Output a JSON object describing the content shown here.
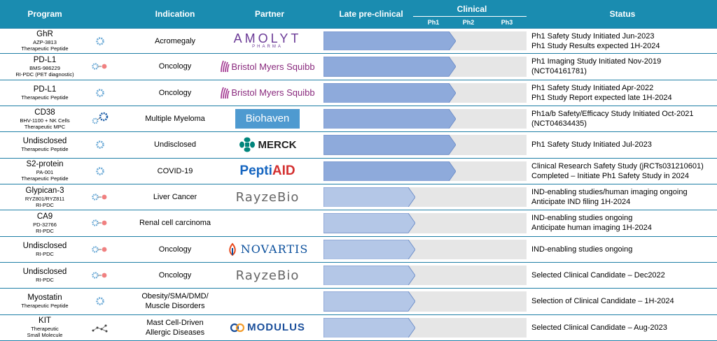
{
  "header": {
    "program": "Program",
    "indication": "Indication",
    "partner": "Partner",
    "late_preclinical": "Late pre-clinical",
    "clinical": "Clinical",
    "phases": [
      "Ph1",
      "Ph2",
      "Ph3"
    ],
    "status": "Status"
  },
  "colors": {
    "header_bg": "#1a8cb0",
    "clinical_bar": "#8eaadb",
    "preclinical_bar": "#b4c7e7",
    "track_bg": "#e6e6e6",
    "row_border": "#1f7fa6"
  },
  "rows": [
    {
      "program": "GhR",
      "sub": "AZP-3813\nTherapeutic Peptide",
      "icon": "peptide-icon",
      "indication": "Acromegaly",
      "partner": "AMOLYT PHARMA",
      "stage": "Ph1",
      "progress": 0.65,
      "status": [
        "Ph1 Safety Study Initiated Jun-2023",
        "Ph1 Study Results expected 1H-2024"
      ]
    },
    {
      "program": "PD-L1",
      "sub": "BMS-986229\nRI-PDC (PET diagnostic)",
      "icon": "radioligand-icon",
      "indication": "Oncology",
      "partner": "Bristol Myers Squibb",
      "stage": "Ph1",
      "progress": 0.65,
      "status": [
        "Ph1 Imaging Study Initiated Nov-2019",
        "(NCT04161781)"
      ]
    },
    {
      "program": "PD-L1",
      "sub": "Therapeutic Peptide",
      "icon": "peptide-icon",
      "indication": "Oncology",
      "partner": "Bristol Myers Squibb",
      "stage": "Ph1",
      "progress": 0.65,
      "status": [
        "Ph1 Safety Study Initiated Apr-2022",
        "Ph1 Study Report expected late 1H-2024"
      ]
    },
    {
      "program": "CD38",
      "sub": "BHV-1100 + NK Cells\nTherapeutic MPC",
      "icon": "mpc-icon",
      "indication": "Multiple Myeloma",
      "partner": "Biohaven",
      "stage": "Ph1",
      "progress": 0.65,
      "status": [
        "Ph1a/b Safety/Efficacy Study Initiated Oct-2021",
        "(NCT04634435)"
      ]
    },
    {
      "program": "Undisclosed",
      "sub": "Therapeutic Peptide",
      "icon": "peptide-icon",
      "indication": "Undisclosed",
      "partner": "MERCK",
      "stage": "Ph1",
      "progress": 0.65,
      "status": [
        "Ph1 Safety Study Initiated Jul-2023"
      ]
    },
    {
      "program": "S2-protein",
      "sub": "PA-001\nTherapeutic Peptide",
      "icon": "peptide-icon",
      "indication": "COVID-19",
      "partner": "PeptiAID",
      "stage": "Ph1",
      "progress": 0.65,
      "status": [
        "Clinical Research Safety Study (jRCTs031210601)",
        "Completed – Initiate Ph1 Safety Study in 2024"
      ]
    },
    {
      "program": "Glypican-3",
      "sub": "RYZ801/RYZ811\nRI-PDC",
      "icon": "radioligand-icon",
      "indication": "Liver Cancer",
      "partner": "RayzeBio",
      "stage": "Late pre-clinical",
      "progress": 0.45,
      "status": [
        "IND-enabling studies/human imaging ongoing",
        "Anticipate IND filing 1H-2024"
      ]
    },
    {
      "program": "CA9",
      "sub": "PD-32766\nRI-PDC",
      "icon": "radioligand-icon",
      "indication": "Renal cell carcinoma",
      "partner": "",
      "stage": "Late pre-clinical",
      "progress": 0.45,
      "status": [
        "IND-enabling studies ongoing",
        "Anticipate human imaging 1H-2024"
      ]
    },
    {
      "program": "Undisclosed",
      "sub": "RI-PDC",
      "icon": "radioligand-icon",
      "indication": "Oncology",
      "partner": "NOVARTIS",
      "stage": "Late pre-clinical",
      "progress": 0.45,
      "status": [
        "IND-enabling studies ongoing"
      ]
    },
    {
      "program": "Undisclosed",
      "sub": "RI-PDC",
      "icon": "radioligand-icon",
      "indication": "Oncology",
      "partner": "RayzeBio",
      "stage": "Late pre-clinical",
      "progress": 0.45,
      "status": [
        "Selected Clinical Candidate – Dec2022"
      ]
    },
    {
      "program": "Myostatin",
      "sub": "Therapeutic Peptide",
      "icon": "peptide-icon",
      "indication": "Obesity/SMA/DMD/\nMuscle Disorders",
      "partner": "",
      "stage": "Late pre-clinical",
      "progress": 0.45,
      "status": [
        "Selection of Clinical Candidate – 1H-2024"
      ]
    },
    {
      "program": "KIT",
      "sub": "Therapeutic\nSmall Molecule",
      "icon": "small-molecule-icon",
      "indication": "Mast Cell-Driven\nAllergic Diseases",
      "partner": "MODULUS",
      "stage": "Late pre-clinical",
      "progress": 0.45,
      "status": [
        "Selected Clinical Candidate – Aug-2023"
      ]
    }
  ]
}
